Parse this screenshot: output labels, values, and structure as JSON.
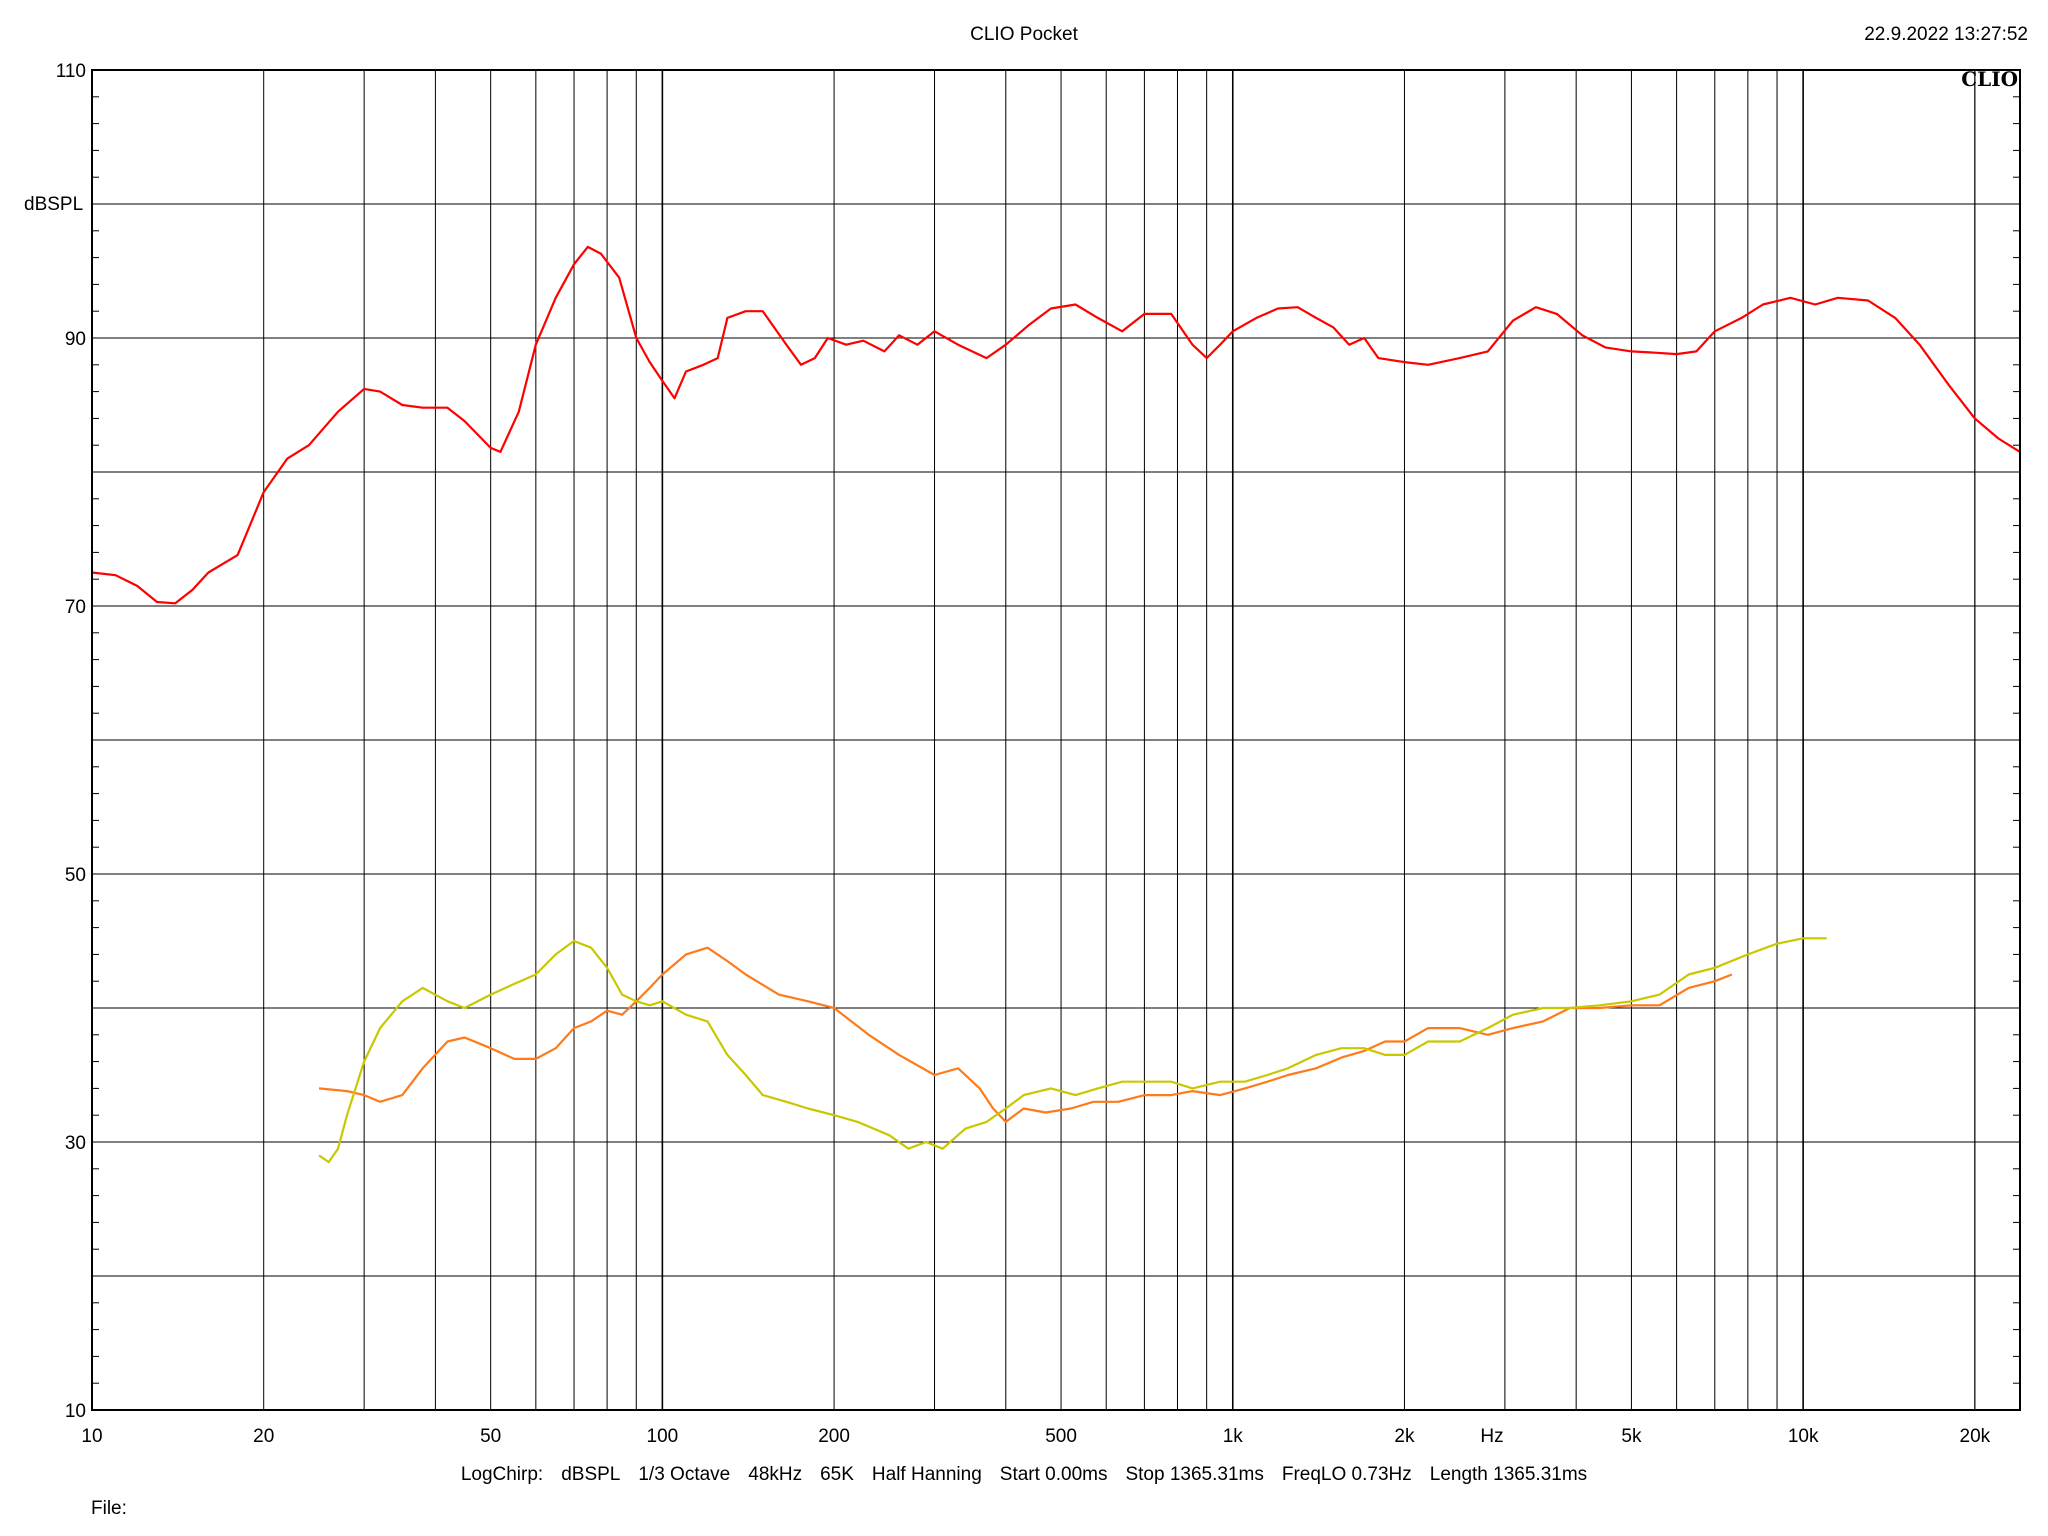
{
  "header": {
    "title": "CLIO Pocket",
    "timestamp": "22.9.2022 13:27:52",
    "logo": "CLIO"
  },
  "measurement_info": [
    "LogChirp:",
    "dBSPL",
    "1/3 Octave",
    "48kHz",
    "65K",
    "Half Hanning",
    "Start 0.00ms",
    "Stop 1365.31ms",
    "FreqLO 0.73Hz",
    "Length 1365.31ms"
  ],
  "footer": {
    "file_label": "File:"
  },
  "chart_data": {
    "type": "line",
    "title": "CLIO Pocket",
    "xlabel": "Hz",
    "ylabel": "dBSPL",
    "x_scale": "log",
    "xlim": [
      10,
      24000
    ],
    "ylim": [
      10,
      110
    ],
    "grid": true,
    "x_ticks": [
      10,
      20,
      50,
      100,
      200,
      500,
      1000,
      2000,
      5000,
      10000,
      20000
    ],
    "x_tick_labels": [
      "10",
      "20",
      "50",
      "100",
      "200",
      "500",
      "1k",
      "2k",
      "5k",
      "10k",
      "20k"
    ],
    "y_ticks": [
      10,
      30,
      50,
      70,
      90,
      110
    ],
    "y_tick_labels": [
      "10",
      "30",
      "50",
      "70",
      "90",
      "110"
    ],
    "series": [
      {
        "color": "#ff0000",
        "x": [
          10,
          11,
          12,
          13,
          14,
          15,
          16,
          18,
          20,
          22,
          24,
          27,
          30,
          32,
          35,
          38,
          42,
          45,
          50,
          52,
          56,
          60,
          65,
          70,
          74,
          78,
          84,
          90,
          95,
          100,
          105,
          110,
          118,
          125,
          130,
          140,
          150,
          165,
          175,
          185,
          195,
          210,
          225,
          245,
          260,
          280,
          300,
          330,
          370,
          400,
          440,
          480,
          530,
          580,
          640,
          700,
          780,
          850,
          900,
          950,
          1000,
          1100,
          1200,
          1300,
          1400,
          1500,
          1600,
          1700,
          1800,
          2000,
          2200,
          2500,
          2800,
          3100,
          3400,
          3700,
          4100,
          4500,
          5000,
          5500,
          6000,
          6500,
          7000,
          7800,
          8500,
          9500,
          10500,
          11500,
          13000,
          14500,
          16000,
          18000,
          20000,
          22000,
          24000
        ],
        "y": [
          72.5,
          72.3,
          71.5,
          70.3,
          70.2,
          71.2,
          72.5,
          73.8,
          78.5,
          81,
          82,
          84.5,
          86.2,
          86,
          85,
          84.8,
          84.8,
          83.8,
          81.8,
          81.5,
          84.5,
          89.5,
          93,
          95.5,
          96.8,
          96.3,
          94.5,
          90,
          88.2,
          86.8,
          85.5,
          87.5,
          88,
          88.5,
          91.5,
          92,
          92,
          89.5,
          88,
          88.5,
          90,
          89.5,
          89.8,
          89,
          90.2,
          89.5,
          90.5,
          89.5,
          88.5,
          89.5,
          91,
          92.2,
          92.5,
          91.5,
          90.5,
          91.8,
          91.8,
          89.5,
          88.5,
          89.5,
          90.5,
          91.5,
          92.2,
          92.3,
          91.5,
          90.8,
          89.5,
          90,
          88.5,
          88.2,
          88,
          88.5,
          89,
          91.3,
          92.3,
          91.8,
          90.2,
          89.3,
          89,
          88.9,
          88.8,
          89,
          90.5,
          91.5,
          92.5,
          93,
          92.5,
          93,
          92.8,
          91.5,
          89.5,
          86.5,
          84,
          82.5,
          81.5
        ]
      },
      {
        "color": "#ff7a1a",
        "x": [
          25,
          28,
          30,
          32,
          35,
          38,
          42,
          45,
          50,
          55,
          60,
          65,
          70,
          75,
          80,
          85,
          90,
          95,
          100,
          110,
          120,
          130,
          140,
          160,
          180,
          200,
          230,
          260,
          300,
          330,
          360,
          380,
          400,
          430,
          470,
          520,
          570,
          630,
          700,
          780,
          850,
          950,
          1050,
          1150,
          1250,
          1400,
          1550,
          1700,
          1850,
          2000,
          2200,
          2500,
          2800,
          3100,
          3500,
          3900,
          4400,
          5000,
          5600,
          6300,
          7000,
          7500
        ],
        "y": [
          34,
          33.8,
          33.5,
          33,
          33.5,
          35.5,
          37.5,
          37.8,
          37,
          36.2,
          36.2,
          37,
          38.5,
          39,
          39.8,
          39.5,
          40.5,
          41.5,
          42.5,
          44,
          44.5,
          43.5,
          42.5,
          41,
          40.5,
          40,
          38,
          36.5,
          35,
          35.5,
          34,
          32.5,
          31.5,
          32.5,
          32.2,
          32.5,
          33,
          33,
          33.5,
          33.5,
          33.8,
          33.5,
          34,
          34.5,
          35,
          35.5,
          36.3,
          36.8,
          37.5,
          37.5,
          38.5,
          38.5,
          38,
          38.5,
          39,
          40,
          40,
          40.2,
          40.2,
          41.5,
          42,
          42.5
        ]
      },
      {
        "color": "#c8c800",
        "x": [
          25,
          26,
          27,
          28,
          30,
          32,
          35,
          38,
          42,
          45,
          50,
          55,
          60,
          65,
          70,
          75,
          80,
          85,
          90,
          95,
          100,
          110,
          120,
          130,
          140,
          150,
          165,
          180,
          200,
          220,
          250,
          270,
          290,
          310,
          340,
          370,
          400,
          430,
          480,
          530,
          580,
          640,
          700,
          780,
          850,
          950,
          1050,
          1150,
          1250,
          1400,
          1550,
          1700,
          1850,
          2000,
          2200,
          2500,
          2800,
          3100,
          3500,
          3900,
          4400,
          5000,
          5600,
          6300,
          7000,
          8000,
          9000,
          10000,
          11000
        ],
        "y": [
          29,
          28.5,
          29.5,
          32,
          36,
          38.5,
          40.5,
          41.5,
          40.5,
          40,
          41,
          41.8,
          42.5,
          44,
          45,
          44.5,
          43,
          41,
          40.5,
          40.2,
          40.5,
          39.5,
          39,
          36.5,
          35,
          33.5,
          33,
          32.5,
          32,
          31.5,
          30.5,
          29.5,
          30,
          29.5,
          31,
          31.5,
          32.5,
          33.5,
          34,
          33.5,
          34,
          34.5,
          34.5,
          34.5,
          34,
          34.5,
          34.5,
          35,
          35.5,
          36.5,
          37,
          37,
          36.5,
          36.5,
          37.5,
          37.5,
          38.5,
          39.5,
          40,
          40,
          40.2,
          40.5,
          41,
          42.5,
          43,
          44,
          44.8,
          45.2,
          45.2
        ]
      }
    ]
  }
}
